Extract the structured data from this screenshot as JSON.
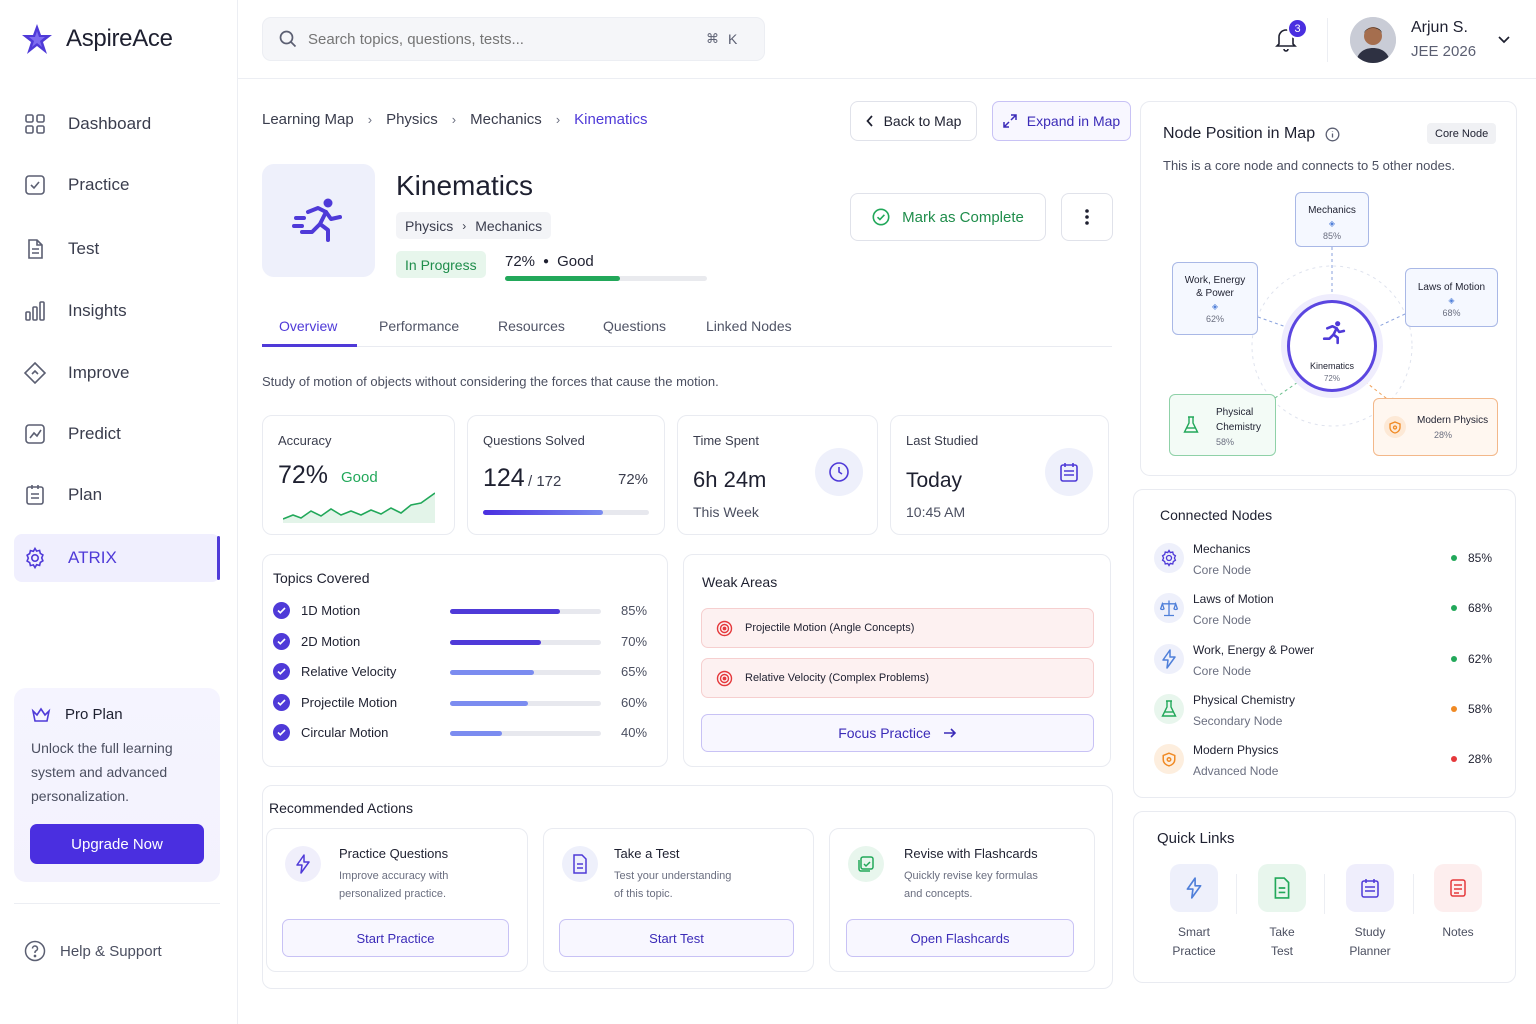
{
  "app": {
    "name": "AspireAce"
  },
  "search": {
    "placeholder": "Search topics, questions, tests...",
    "shortcut_cmd": "⌘",
    "shortcut_key": "K"
  },
  "notifications": {
    "count": "3"
  },
  "user": {
    "name": "Arjun S.",
    "subtitle": "JEE 2026"
  },
  "sidebar": {
    "items": [
      {
        "label": "Dashboard",
        "icon": "grid-icon"
      },
      {
        "label": "Practice",
        "icon": "checkbox-icon"
      },
      {
        "label": "Test",
        "icon": "document-icon"
      },
      {
        "label": "Insights",
        "icon": "bar-chart-icon"
      },
      {
        "label": "Improve",
        "icon": "diamond-icon"
      },
      {
        "label": "Predict",
        "icon": "trend-icon"
      },
      {
        "label": "Plan",
        "icon": "clipboard-icon"
      },
      {
        "label": "ATRIX",
        "icon": "gear-icon",
        "active": true
      }
    ],
    "pro": {
      "title": "Pro Plan",
      "line1": "Unlock the full learning",
      "line2": "system and advanced",
      "line3": "personalization.",
      "button": "Upgrade Now"
    },
    "help": "Help & Support"
  },
  "breadcrumb": [
    "Learning Map",
    "Physics",
    "Mechanics",
    "Kinematics"
  ],
  "actions": {
    "back": "Back to Map",
    "expand": "Expand in Map",
    "complete": "Mark as Complete"
  },
  "topic": {
    "title": "Kinematics",
    "path1": "Physics",
    "path2": "Mechanics",
    "status": "In Progress",
    "score": "72%",
    "rating": "Good",
    "progress": 0.72
  },
  "tabs": [
    "Overview",
    "Performance",
    "Resources",
    "Questions",
    "Linked Nodes"
  ],
  "description": "Study of motion of objects without considering the forces that cause the motion.",
  "stats": {
    "accuracy": {
      "label": "Accuracy",
      "value": "72%",
      "rating": "Good"
    },
    "solved": {
      "label": "Questions Solved",
      "value": "124",
      "total": "/ 172",
      "pct": "72%",
      "progress": 0.72
    },
    "time": {
      "label": "Time Spent",
      "value": "6h 24m",
      "sub": "This Week"
    },
    "last": {
      "label": "Last Studied",
      "value": "Today",
      "sub": "10:45 AM"
    }
  },
  "topics_covered": {
    "title": "Topics Covered",
    "items": [
      {
        "name": "1D Motion",
        "pct": "85%",
        "value": 0.85
      },
      {
        "name": "2D Motion",
        "pct": "70%",
        "value": 0.7
      },
      {
        "name": "Relative Velocity",
        "pct": "65%",
        "value": 0.65
      },
      {
        "name": "Projectile Motion",
        "pct": "60%",
        "value": 0.6
      },
      {
        "name": "Circular Motion",
        "pct": "40%",
        "value": 0.4
      }
    ]
  },
  "weak_areas": {
    "title": "Weak Areas",
    "items": [
      "Projectile Motion (Angle Concepts)",
      "Relative Velocity (Complex Problems)"
    ],
    "button": "Focus Practice"
  },
  "recommended": {
    "title": "Recommended Actions",
    "cards": [
      {
        "title": "Practice Questions",
        "desc1": "Improve accuracy with",
        "desc2": "personalized practice.",
        "button": "Start Practice"
      },
      {
        "title": "Take a Test",
        "desc1": "Test your understanding",
        "desc2": "of this topic.",
        "button": "Start Test"
      },
      {
        "title": "Revise with Flashcards",
        "desc1": "Quickly revise key formulas",
        "desc2": "and concepts.",
        "button": "Open Flashcards"
      }
    ]
  },
  "map": {
    "title": "Node Position in Map",
    "badge": "Core Node",
    "desc": "This is a core node and connects to 5 other nodes.",
    "center": {
      "name": "Kinematics",
      "pct": "72%"
    },
    "nodes": {
      "mechanics": {
        "name": "Mechanics",
        "pct": "85%"
      },
      "wep": {
        "name1": "Work, Energy",
        "name2": "& Power",
        "pct": "62%"
      },
      "laws": {
        "name": "Laws of Motion",
        "pct": "68%"
      },
      "chem": {
        "name1": "Physical",
        "name2": "Chemistry",
        "pct": "58%"
      },
      "modern": {
        "name": "Modern Physics",
        "pct": "28%"
      }
    }
  },
  "connected": {
    "title": "Connected Nodes",
    "items": [
      {
        "name": "Mechanics",
        "type": "Core Node",
        "pct": "85%",
        "dot": "#22a85a"
      },
      {
        "name": "Laws of Motion",
        "type": "Core Node",
        "pct": "68%",
        "dot": "#22a85a"
      },
      {
        "name": "Work, Energy & Power",
        "type": "Core Node",
        "pct": "62%",
        "dot": "#22a85a"
      },
      {
        "name": "Physical Chemistry",
        "type": "Secondary Node",
        "pct": "58%",
        "dot": "#f08a24"
      },
      {
        "name": "Modern Physics",
        "type": "Advanced Node",
        "pct": "28%",
        "dot": "#e5383b"
      }
    ]
  },
  "quick_links": {
    "title": "Quick Links",
    "items": [
      {
        "l1": "Smart",
        "l2": "Practice"
      },
      {
        "l1": "Take",
        "l2": "Test"
      },
      {
        "l1": "Study",
        "l2": "Planner"
      },
      {
        "l1": "Notes",
        "l2": ""
      }
    ]
  },
  "colors": {
    "accent": "#4f3ad8",
    "good": "#22a85a",
    "warn": "#f08a24",
    "bad": "#e5383b"
  }
}
